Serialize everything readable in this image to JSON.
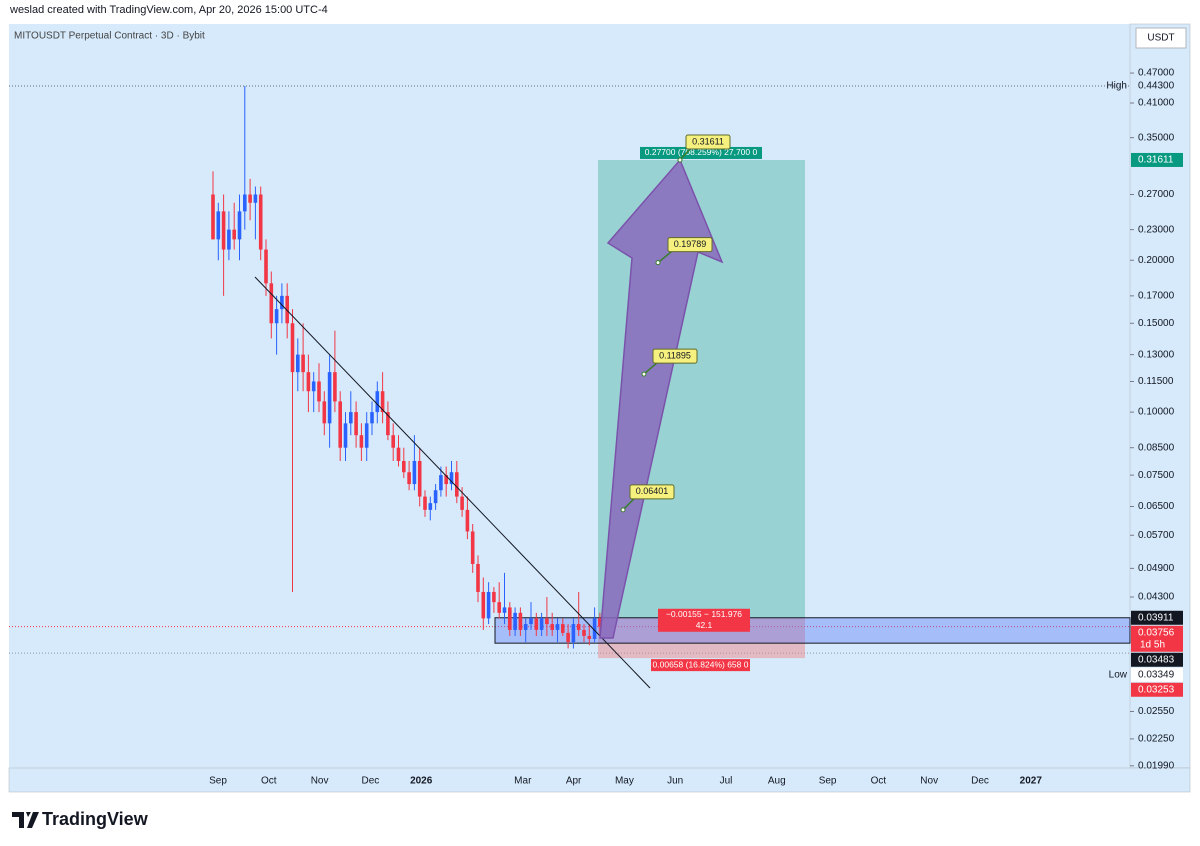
{
  "header": {
    "credit": "weslad created with TradingView.com, Apr 20, 2026 15:00 UTC-4",
    "symbol": "MITOUSDT Perpetual Contract · 3D · Bybit",
    "currency": "USDT",
    "brand": "TradingView"
  },
  "chart_data": {
    "type": "candlestick",
    "log_scale": true,
    "grid": false,
    "up_color": "#2962ff",
    "down_color": "#f23645",
    "ylim": [
      0.0197,
      0.588
    ],
    "yticks": [
      {
        "value": 0.47,
        "label": "0.47000"
      },
      {
        "value": 0.41,
        "label": "0.41000"
      },
      {
        "value": 0.35,
        "label": "0.35000"
      },
      {
        "value": 0.27,
        "label": "0.27000"
      },
      {
        "value": 0.23,
        "label": "0.23000"
      },
      {
        "value": 0.2,
        "label": "0.20000"
      },
      {
        "value": 0.17,
        "label": "0.17000"
      },
      {
        "value": 0.15,
        "label": "0.15000"
      },
      {
        "value": 0.13,
        "label": "0.13000"
      },
      {
        "value": 0.115,
        "label": "0.11500"
      },
      {
        "value": 0.1,
        "label": "0.10000"
      },
      {
        "value": 0.085,
        "label": "0.08500"
      },
      {
        "value": 0.075,
        "label": "0.07500"
      },
      {
        "value": 0.065,
        "label": "0.06500"
      },
      {
        "value": 0.057,
        "label": "0.05700"
      },
      {
        "value": 0.049,
        "label": "0.04900"
      },
      {
        "value": 0.043,
        "label": "0.04300"
      },
      {
        "value": 0.0255,
        "label": "0.02550"
      },
      {
        "value": 0.0225,
        "label": "0.02250"
      },
      {
        "value": 0.0199,
        "label": "0.01990"
      }
    ],
    "x_labels": [
      "Sep",
      "Oct",
      "Nov",
      "Dec",
      "2026",
      null,
      "Mar",
      "Apr",
      "May",
      "Jun",
      "Jul",
      "Aug",
      "Sep",
      "Oct",
      "Nov",
      "Dec",
      "2027"
    ],
    "ohlc": [
      [
        0.27,
        0.3,
        0.22,
        0.22
      ],
      [
        0.22,
        0.26,
        0.2,
        0.25
      ],
      [
        0.25,
        0.27,
        0.17,
        0.21
      ],
      [
        0.21,
        0.25,
        0.2,
        0.23
      ],
      [
        0.23,
        0.26,
        0.21,
        0.22
      ],
      [
        0.22,
        0.27,
        0.2,
        0.25
      ],
      [
        0.25,
        0.443,
        0.23,
        0.27
      ],
      [
        0.27,
        0.29,
        0.24,
        0.26
      ],
      [
        0.26,
        0.28,
        0.22,
        0.27
      ],
      [
        0.27,
        0.28,
        0.2,
        0.21
      ],
      [
        0.21,
        0.22,
        0.17,
        0.18
      ],
      [
        0.18,
        0.19,
        0.14,
        0.15
      ],
      [
        0.15,
        0.17,
        0.13,
        0.16
      ],
      [
        0.16,
        0.18,
        0.15,
        0.17
      ],
      [
        0.17,
        0.18,
        0.14,
        0.15
      ],
      [
        0.15,
        0.16,
        0.044,
        0.12
      ],
      [
        0.12,
        0.14,
        0.11,
        0.13
      ],
      [
        0.13,
        0.15,
        0.11,
        0.12
      ],
      [
        0.12,
        0.13,
        0.1,
        0.11
      ],
      [
        0.11,
        0.12,
        0.1,
        0.115
      ],
      [
        0.115,
        0.125,
        0.1,
        0.105
      ],
      [
        0.105,
        0.11,
        0.09,
        0.095
      ],
      [
        0.095,
        0.13,
        0.085,
        0.12
      ],
      [
        0.12,
        0.145,
        0.1,
        0.105
      ],
      [
        0.105,
        0.11,
        0.08,
        0.085
      ],
      [
        0.085,
        0.1,
        0.08,
        0.095
      ],
      [
        0.095,
        0.11,
        0.09,
        0.1
      ],
      [
        0.1,
        0.105,
        0.085,
        0.09
      ],
      [
        0.09,
        0.095,
        0.08,
        0.085
      ],
      [
        0.085,
        0.1,
        0.08,
        0.095
      ],
      [
        0.095,
        0.105,
        0.09,
        0.1
      ],
      [
        0.1,
        0.115,
        0.095,
        0.11
      ],
      [
        0.11,
        0.12,
        0.095,
        0.1
      ],
      [
        0.1,
        0.105,
        0.088,
        0.09
      ],
      [
        0.09,
        0.095,
        0.08,
        0.085
      ],
      [
        0.085,
        0.09,
        0.078,
        0.08
      ],
      [
        0.08,
        0.085,
        0.074,
        0.076
      ],
      [
        0.076,
        0.08,
        0.07,
        0.072
      ],
      [
        0.072,
        0.09,
        0.07,
        0.08
      ],
      [
        0.08,
        0.085,
        0.065,
        0.068
      ],
      [
        0.068,
        0.07,
        0.062,
        0.064
      ],
      [
        0.064,
        0.068,
        0.061,
        0.066
      ],
      [
        0.066,
        0.072,
        0.064,
        0.07
      ],
      [
        0.07,
        0.078,
        0.068,
        0.075
      ],
      [
        0.075,
        0.078,
        0.068,
        0.072
      ],
      [
        0.072,
        0.08,
        0.07,
        0.076
      ],
      [
        0.076,
        0.08,
        0.066,
        0.068
      ],
      [
        0.068,
        0.071,
        0.062,
        0.064
      ],
      [
        0.064,
        0.068,
        0.056,
        0.058
      ],
      [
        0.058,
        0.06,
        0.048,
        0.05
      ],
      [
        0.05,
        0.052,
        0.042,
        0.044
      ],
      [
        0.044,
        0.047,
        0.037,
        0.039
      ],
      [
        0.039,
        0.046,
        0.038,
        0.044
      ],
      [
        0.044,
        0.045,
        0.04,
        0.042
      ],
      [
        0.042,
        0.046,
        0.039,
        0.04
      ],
      [
        0.04,
        0.048,
        0.038,
        0.041
      ],
      [
        0.041,
        0.042,
        0.036,
        0.037
      ],
      [
        0.037,
        0.041,
        0.036,
        0.04
      ],
      [
        0.04,
        0.041,
        0.036,
        0.037
      ],
      [
        0.037,
        0.039,
        0.035,
        0.038
      ],
      [
        0.038,
        0.042,
        0.037,
        0.039
      ],
      [
        0.039,
        0.04,
        0.036,
        0.037
      ],
      [
        0.037,
        0.04,
        0.036,
        0.039
      ],
      [
        0.039,
        0.043,
        0.036,
        0.038
      ],
      [
        0.038,
        0.04,
        0.036,
        0.037
      ],
      [
        0.037,
        0.039,
        0.035,
        0.038
      ],
      [
        0.038,
        0.039,
        0.036,
        0.0365
      ],
      [
        0.0365,
        0.038,
        0.034,
        0.035
      ],
      [
        0.035,
        0.039,
        0.034,
        0.038
      ],
      [
        0.038,
        0.044,
        0.036,
        0.037
      ],
      [
        0.037,
        0.038,
        0.035,
        0.036
      ],
      [
        0.036,
        0.038,
        0.0345,
        0.0355
      ],
      [
        0.0355,
        0.041,
        0.035,
        0.039
      ],
      [
        0.039,
        0.04,
        0.036,
        0.03756
      ]
    ],
    "high": {
      "label": "High",
      "value": 0.443,
      "value_label": "0.44300"
    },
    "low": {
      "label": "Low",
      "value": 0.03349,
      "value_label": "0.03349"
    },
    "last_price": {
      "value": 0.03756,
      "value_label": "0.03756",
      "countdown": "1d 5h"
    },
    "range_box": {
      "top": 0.03911,
      "bottom": 0.03483,
      "top_label": "0.03911",
      "bottom_label": "0.03483"
    },
    "position": {
      "target": 0.31611,
      "target_label": "0.31611",
      "entry": 0.03911,
      "stop": 0.03253,
      "stop_label": "0.03253",
      "target_text": "0.27700 (708.259%) 27,700 0",
      "entry_text": "−0.00155 − 151.976",
      "entry_text2": "42.1",
      "stop_text": "0.00658 (16.824%) 658 0"
    },
    "callouts": [
      {
        "value": 0.06401,
        "label": "0.06401"
      },
      {
        "value": 0.11895,
        "label": "0.11895"
      },
      {
        "value": 0.19789,
        "label": "0.19789"
      },
      {
        "value": 0.31611,
        "label": "0.31611"
      }
    ]
  }
}
